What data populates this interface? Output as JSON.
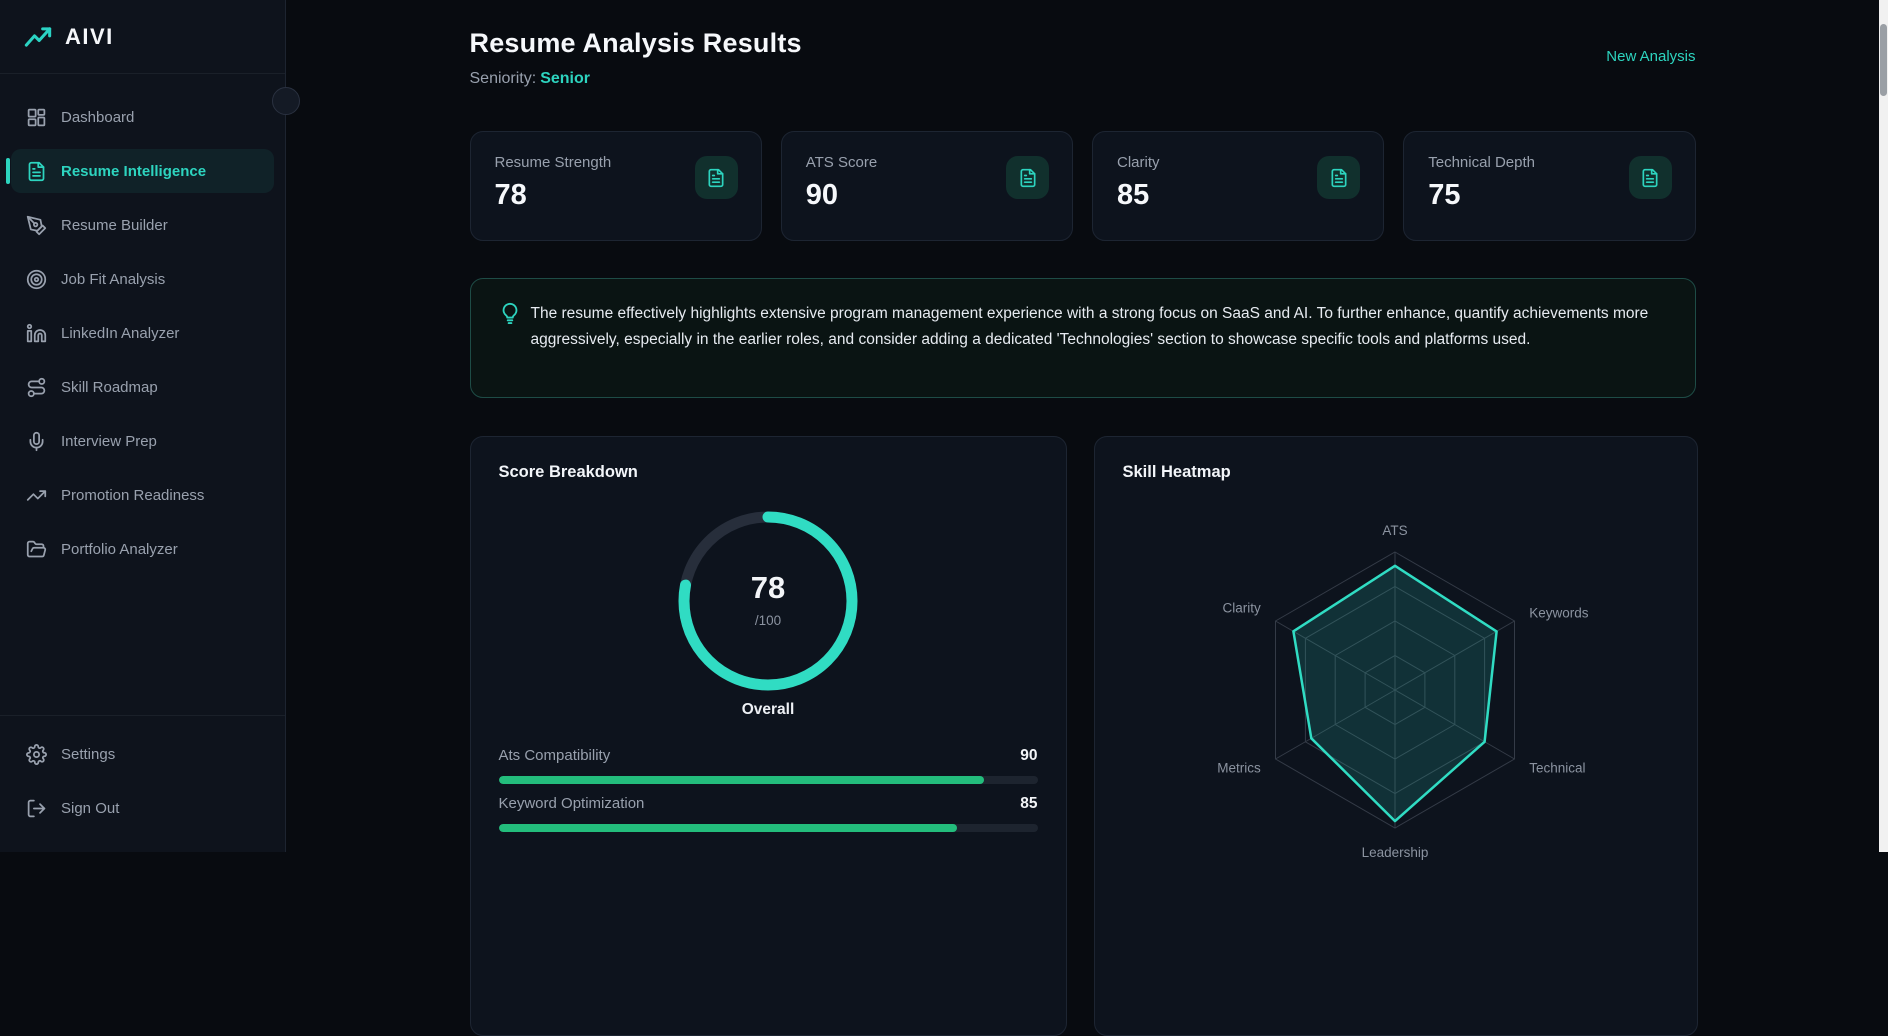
{
  "brand": {
    "name": "AIVI",
    "logo_icon": "trending-up"
  },
  "colors": {
    "accent": "#2dd4bf",
    "chart_teal": "#30dcc3",
    "bar_green": "#23bd7c",
    "radar_fill": "rgba(45,212,191,0.16)",
    "radar_grid": "#343b47",
    "donut_track": "#272e3b"
  },
  "sidebar": {
    "items": [
      {
        "label": "Dashboard",
        "icon": "dashboard",
        "active": false
      },
      {
        "label": "Resume Intelligence",
        "icon": "file-text",
        "active": true
      },
      {
        "label": "Resume Builder",
        "icon": "pen-tool",
        "active": false
      },
      {
        "label": "Job Fit Analysis",
        "icon": "target",
        "active": false
      },
      {
        "label": "LinkedIn Analyzer",
        "icon": "linkedin",
        "active": false
      },
      {
        "label": "Skill Roadmap",
        "icon": "route",
        "active": false
      },
      {
        "label": "Interview Prep",
        "icon": "microphone",
        "active": false
      },
      {
        "label": "Promotion Readiness",
        "icon": "trending-up",
        "active": false
      },
      {
        "label": "Portfolio Analyzer",
        "icon": "folder-open",
        "active": false
      }
    ],
    "footer_items": [
      {
        "label": "Settings",
        "icon": "gear",
        "active": false
      },
      {
        "label": "Sign Out",
        "icon": "log-out",
        "active": false
      }
    ]
  },
  "header": {
    "title": "Resume Analysis Results",
    "seniority_label": "Seniority:",
    "seniority_value": "Senior",
    "action": "New Analysis"
  },
  "stats": [
    {
      "label": "Resume Strength",
      "value": "78",
      "icon": "file-text"
    },
    {
      "label": "ATS Score",
      "value": "90",
      "icon": "file-text"
    },
    {
      "label": "Clarity",
      "value": "85",
      "icon": "file-text"
    },
    {
      "label": "Technical Depth",
      "value": "75",
      "icon": "file-text"
    }
  ],
  "insight": {
    "text": "The resume effectively highlights extensive program management experience with a strong focus on SaaS and AI. To further enhance, quantify achievements more aggressively, especially in the earlier roles, and consider adding a dedicated 'Technologies' section to showcase specific tools and platforms used."
  },
  "score_breakdown": {
    "title": "Score Breakdown",
    "value": "78",
    "max_label": "/100",
    "center_label": "Overall"
  },
  "skill_heatmap": {
    "title": "Skill Heatmap"
  },
  "chart_data": [
    {
      "type": "donut",
      "title": "Score Breakdown",
      "label": "Overall",
      "value": 78,
      "max": 100
    },
    {
      "type": "bar",
      "categories": [
        "Ats Compatibility",
        "Keyword Optimization"
      ],
      "values": [
        90,
        85
      ],
      "max": 100
    },
    {
      "type": "radar",
      "title": "Skill Heatmap",
      "categories": [
        "ATS",
        "Keywords",
        "Technical",
        "Leadership",
        "Metrics",
        "Clarity"
      ],
      "values": [
        90,
        85,
        75,
        95,
        70,
        85
      ],
      "max": 100,
      "levels": 4,
      "legend": "none",
      "grid": true
    }
  ]
}
